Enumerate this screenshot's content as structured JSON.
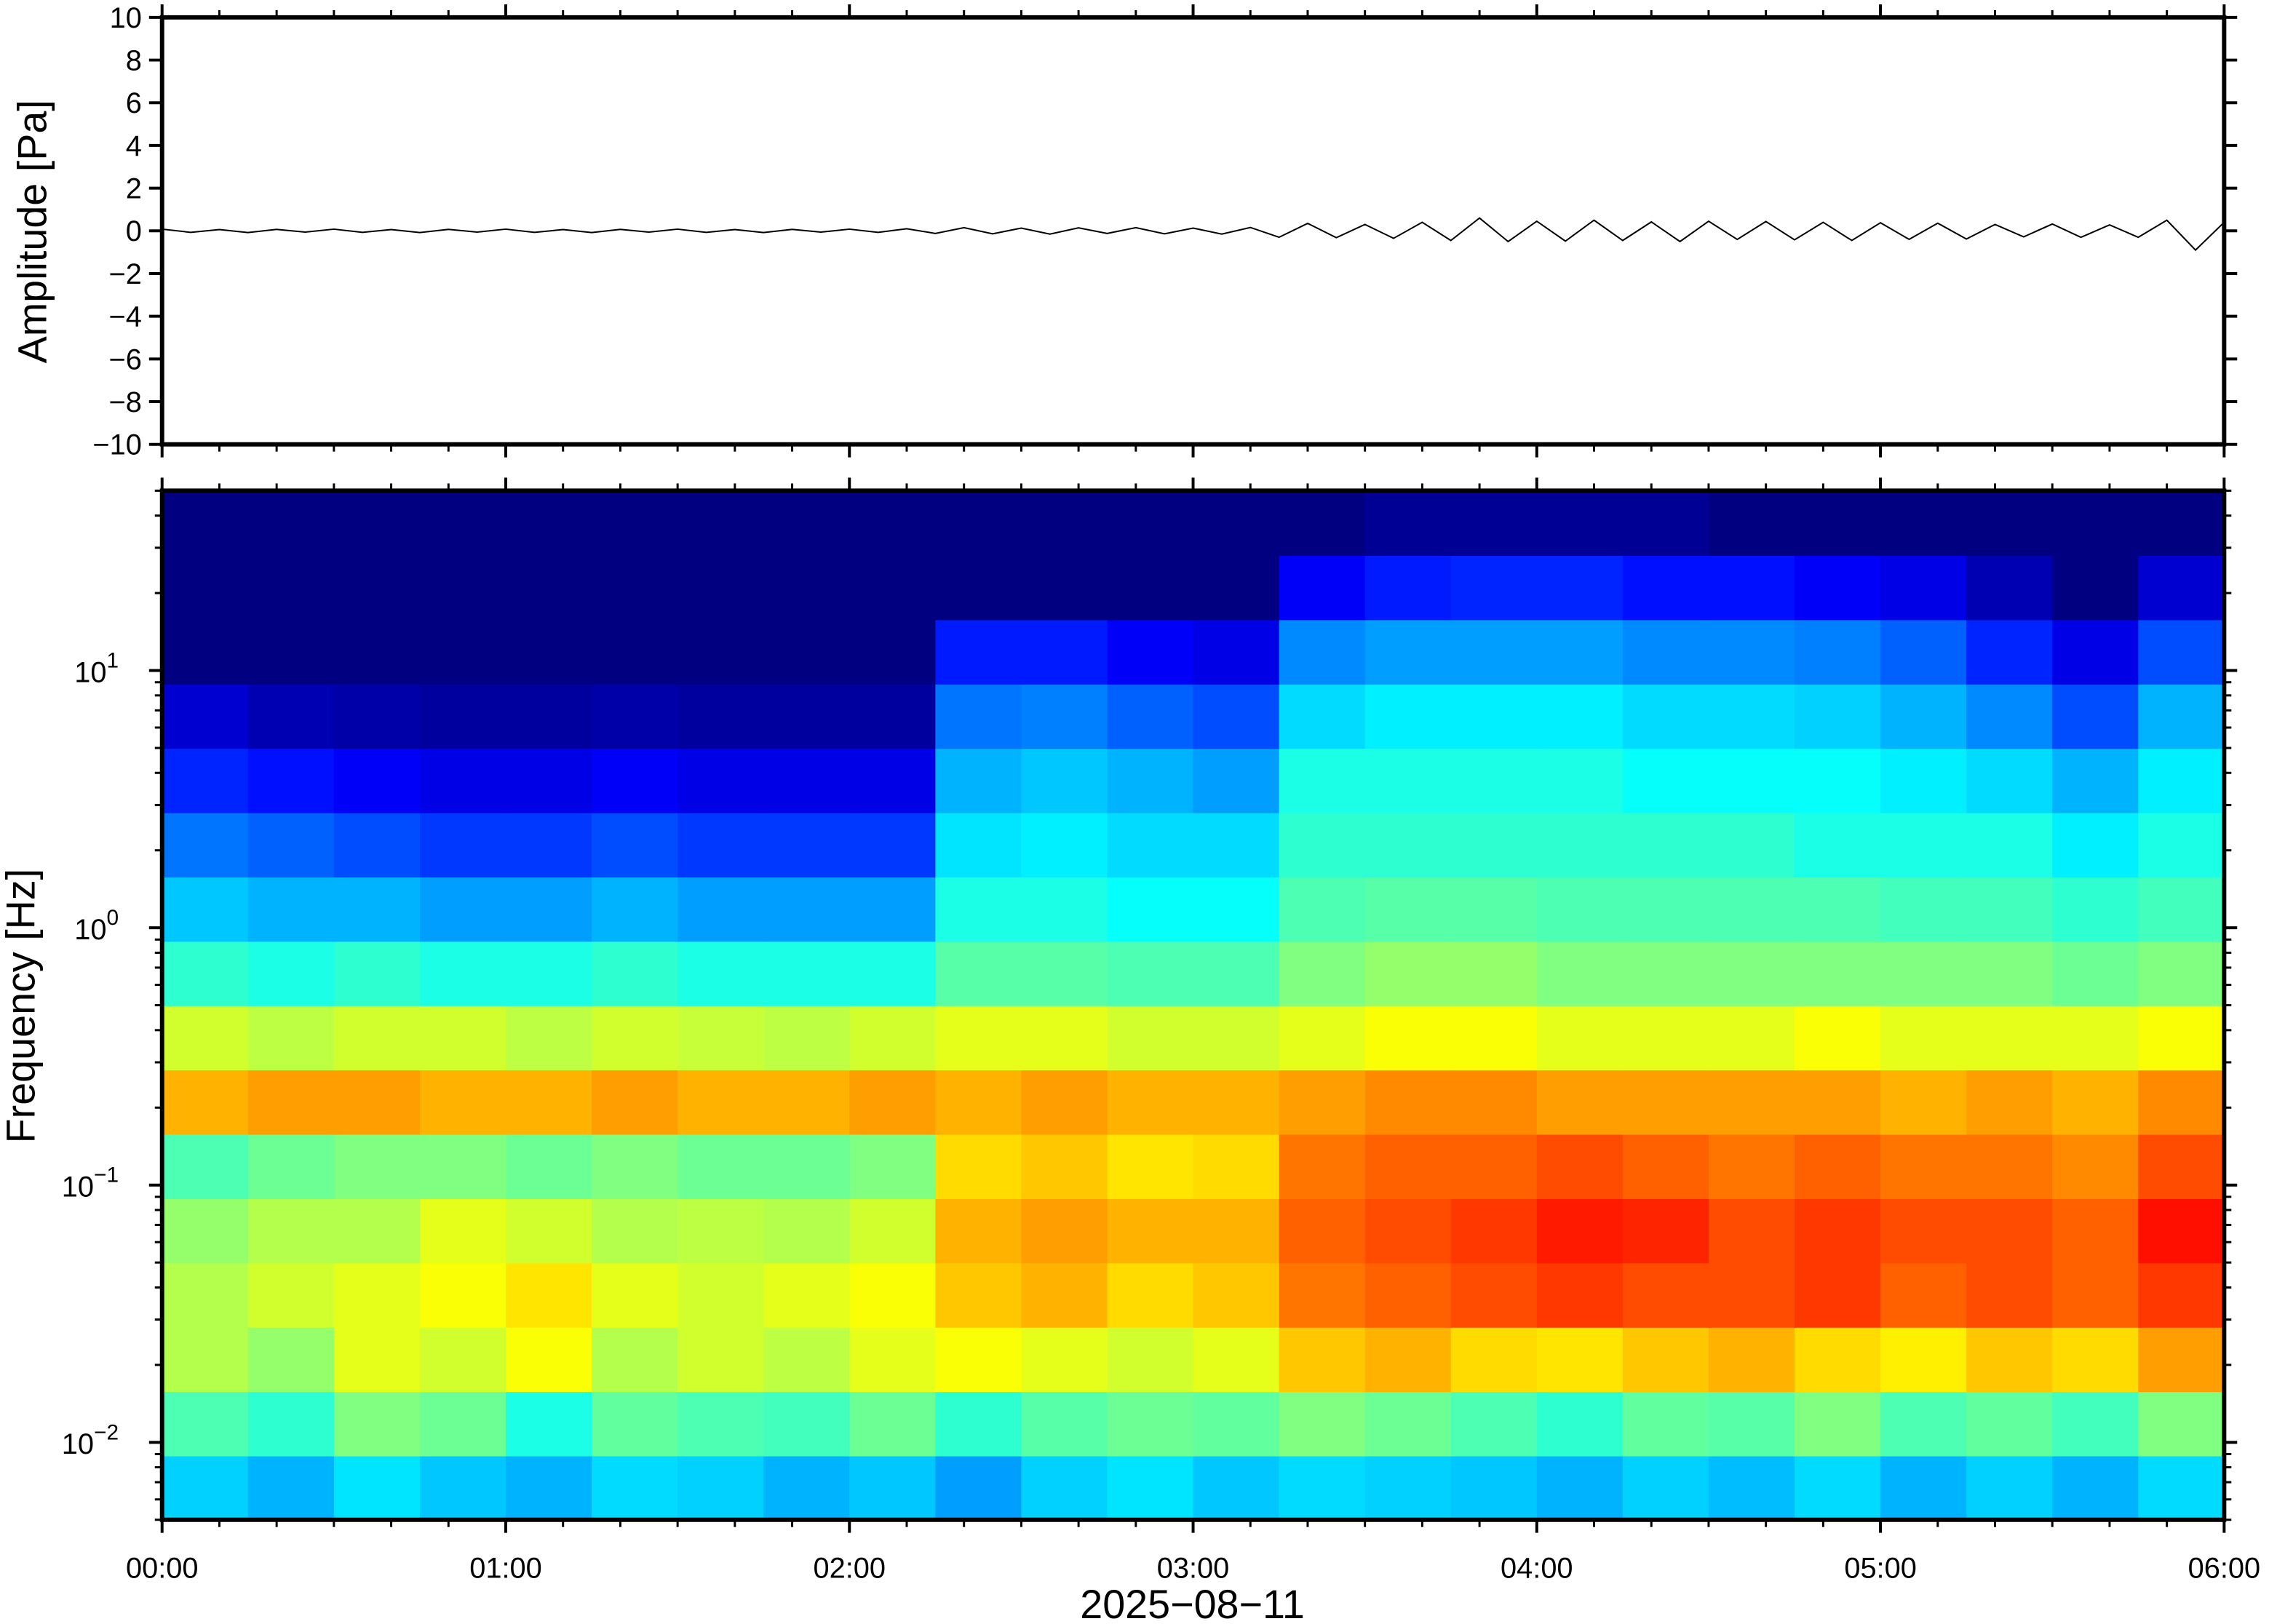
{
  "chart_data": [
    {
      "type": "line",
      "ylabel": "Amplitude [Pa]",
      "color": "#000000",
      "xlim": [
        0,
        360
      ],
      "xticks": [
        0,
        60,
        120,
        180,
        240,
        300,
        360
      ],
      "ylim": [
        -10,
        10
      ],
      "yticks": [
        {
          "value": -10,
          "label": "−10"
        },
        {
          "value": -8,
          "label": "−8"
        },
        {
          "value": -6,
          "label": "−6"
        },
        {
          "value": -4,
          "label": "−4"
        },
        {
          "value": -2,
          "label": "−2"
        },
        0,
        2,
        4,
        6,
        8,
        10
      ],
      "x": [
        0,
        5,
        10,
        15,
        20,
        25,
        30,
        35,
        40,
        45,
        50,
        55,
        60,
        65,
        70,
        75,
        80,
        85,
        90,
        95,
        100,
        105,
        110,
        115,
        120,
        125,
        130,
        135,
        140,
        145,
        150,
        155,
        160,
        165,
        170,
        175,
        180,
        185,
        190,
        195,
        200,
        205,
        210,
        215,
        220,
        225,
        230,
        235,
        240,
        245,
        250,
        255,
        260,
        265,
        270,
        275,
        280,
        285,
        290,
        295,
        300,
        305,
        310,
        315,
        320,
        325,
        330,
        335,
        340,
        345,
        350,
        355,
        360
      ],
      "values": [
        0.08,
        -0.07,
        0.06,
        -0.08,
        0.07,
        -0.06,
        0.08,
        -0.07,
        0.06,
        -0.08,
        0.07,
        -0.06,
        0.08,
        -0.07,
        0.06,
        -0.08,
        0.07,
        -0.06,
        0.08,
        -0.07,
        0.06,
        -0.08,
        0.07,
        -0.06,
        0.08,
        -0.07,
        0.1,
        -0.12,
        0.15,
        -0.14,
        0.13,
        -0.15,
        0.14,
        -0.12,
        0.15,
        -0.14,
        0.13,
        -0.15,
        0.16,
        -0.3,
        0.35,
        -0.32,
        0.3,
        -0.35,
        0.4,
        -0.45,
        0.6,
        -0.5,
        0.45,
        -0.48,
        0.5,
        -0.45,
        0.42,
        -0.5,
        0.45,
        -0.4,
        0.44,
        -0.42,
        0.4,
        -0.45,
        0.38,
        -0.4,
        0.36,
        -0.38,
        0.3,
        -0.28,
        0.32,
        -0.3,
        0.28,
        -0.3,
        0.5,
        -0.9,
        0.4
      ]
    },
    {
      "type": "spectrogram",
      "ylabel": "Frequency [Hz]",
      "xlabel": "2025−08−11",
      "colormap": "jet",
      "log_y": true,
      "xlim": [
        0,
        360
      ],
      "xticks": [
        {
          "value": 0,
          "label": "00:00"
        },
        {
          "value": 60,
          "label": "01:00"
        },
        {
          "value": 120,
          "label": "02:00"
        },
        {
          "value": 180,
          "label": "03:00"
        },
        {
          "value": 240,
          "label": "04:00"
        },
        {
          "value": 300,
          "label": "05:00"
        },
        {
          "value": 360,
          "label": "06:00"
        }
      ],
      "ylim": [
        0.005,
        50
      ],
      "yticks": [
        {
          "value": 0.01,
          "label": "10",
          "exponent": "−2"
        },
        {
          "value": 0.1,
          "label": "10",
          "exponent": "−1"
        },
        {
          "value": 1,
          "label": "10",
          "exponent": "0"
        },
        {
          "value": 10,
          "label": "10",
          "exponent": "1"
        }
      ],
      "zlim": [
        0,
        1
      ],
      "z": [
        [
          0.33,
          0.3,
          0.35,
          0.32,
          0.3,
          0.34,
          0.33,
          0.3,
          0.32,
          0.28,
          0.33,
          0.35,
          0.32,
          0.34,
          0.33,
          0.32,
          0.3,
          0.33,
          0.31,
          0.34,
          0.3,
          0.33,
          0.3,
          0.34
        ],
        [
          0.45,
          0.42,
          0.5,
          0.48,
          0.4,
          0.47,
          0.45,
          0.44,
          0.48,
          0.42,
          0.46,
          0.48,
          0.47,
          0.5,
          0.48,
          0.45,
          0.42,
          0.47,
          0.46,
          0.5,
          0.45,
          0.47,
          0.44,
          0.5
        ],
        [
          0.55,
          0.52,
          0.6,
          0.58,
          0.62,
          0.55,
          0.58,
          0.56,
          0.6,
          0.62,
          0.6,
          0.58,
          0.6,
          0.68,
          0.7,
          0.66,
          0.65,
          0.68,
          0.7,
          0.66,
          0.64,
          0.68,
          0.66,
          0.72
        ],
        [
          0.55,
          0.58,
          0.6,
          0.62,
          0.65,
          0.6,
          0.58,
          0.6,
          0.62,
          0.68,
          0.7,
          0.66,
          0.68,
          0.76,
          0.78,
          0.8,
          0.82,
          0.8,
          0.8,
          0.82,
          0.78,
          0.8,
          0.78,
          0.82
        ],
        [
          0.52,
          0.55,
          0.55,
          0.6,
          0.58,
          0.55,
          0.56,
          0.55,
          0.58,
          0.7,
          0.72,
          0.7,
          0.7,
          0.78,
          0.8,
          0.82,
          0.85,
          0.84,
          0.8,
          0.82,
          0.8,
          0.8,
          0.78,
          0.86
        ],
        [
          0.45,
          0.48,
          0.5,
          0.5,
          0.48,
          0.5,
          0.48,
          0.48,
          0.5,
          0.66,
          0.68,
          0.65,
          0.66,
          0.76,
          0.78,
          0.78,
          0.8,
          0.78,
          0.76,
          0.78,
          0.76,
          0.76,
          0.74,
          0.8
        ],
        [
          0.7,
          0.72,
          0.72,
          0.7,
          0.7,
          0.72,
          0.7,
          0.7,
          0.72,
          0.7,
          0.72,
          0.7,
          0.7,
          0.72,
          0.74,
          0.74,
          0.72,
          0.72,
          0.72,
          0.72,
          0.7,
          0.72,
          0.7,
          0.74
        ],
        [
          0.58,
          0.56,
          0.58,
          0.58,
          0.56,
          0.58,
          0.57,
          0.56,
          0.58,
          0.6,
          0.6,
          0.58,
          0.58,
          0.6,
          0.62,
          0.62,
          0.6,
          0.6,
          0.6,
          0.62,
          0.6,
          0.6,
          0.6,
          0.62
        ],
        [
          0.42,
          0.4,
          0.42,
          0.4,
          0.4,
          0.42,
          0.4,
          0.4,
          0.4,
          0.46,
          0.46,
          0.45,
          0.45,
          0.5,
          0.52,
          0.52,
          0.5,
          0.5,
          0.5,
          0.5,
          0.5,
          0.5,
          0.48,
          0.5
        ],
        [
          0.32,
          0.3,
          0.3,
          0.28,
          0.28,
          0.3,
          0.28,
          0.28,
          0.28,
          0.4,
          0.4,
          0.38,
          0.38,
          0.45,
          0.46,
          0.46,
          0.45,
          0.45,
          0.45,
          0.45,
          0.44,
          0.44,
          0.42,
          0.44
        ],
        [
          0.24,
          0.22,
          0.2,
          0.18,
          0.18,
          0.2,
          0.18,
          0.18,
          0.18,
          0.35,
          0.36,
          0.34,
          0.34,
          0.42,
          0.42,
          0.42,
          0.42,
          0.42,
          0.42,
          0.4,
          0.4,
          0.4,
          0.36,
          0.4
        ],
        [
          0.16,
          0.14,
          0.12,
          0.1,
          0.1,
          0.12,
          0.1,
          0.1,
          0.1,
          0.3,
          0.32,
          0.3,
          0.28,
          0.4,
          0.4,
          0.4,
          0.4,
          0.38,
          0.38,
          0.38,
          0.36,
          0.34,
          0.3,
          0.36
        ],
        [
          0.08,
          0.05,
          0.04,
          0.03,
          0.03,
          0.04,
          0.03,
          0.03,
          0.03,
          0.24,
          0.25,
          0.22,
          0.2,
          0.34,
          0.36,
          0.36,
          0.36,
          0.34,
          0.34,
          0.33,
          0.3,
          0.26,
          0.2,
          0.3
        ],
        [
          0,
          0,
          0,
          0,
          0,
          0,
          0,
          0,
          0,
          0.15,
          0.15,
          0.12,
          0.1,
          0.26,
          0.28,
          0.28,
          0.28,
          0.26,
          0.26,
          0.25,
          0.22,
          0.16,
          0.1,
          0.2
        ],
        [
          0,
          0,
          0,
          0,
          0,
          0,
          0,
          0,
          0,
          0,
          0,
          0,
          0,
          0.12,
          0.15,
          0.16,
          0.16,
          0.14,
          0.14,
          0.12,
          0.1,
          0.05,
          0,
          0.08
        ],
        [
          0,
          0,
          0,
          0,
          0,
          0,
          0,
          0,
          0,
          0,
          0,
          0,
          0,
          0,
          0.02,
          0.02,
          0.02,
          0.02,
          0,
          0,
          0,
          0,
          0,
          0
        ]
      ]
    }
  ]
}
